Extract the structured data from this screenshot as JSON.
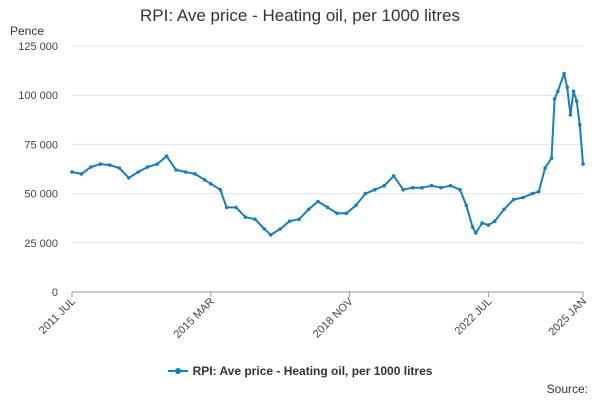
{
  "chart_data": {
    "type": "line",
    "title": "RPI: Ave price - Heating oil, per 1000 litres",
    "ylabel": "Pence",
    "ylim": [
      0,
      125000
    ],
    "y_ticks": [
      "0",
      "25 000",
      "50 000",
      "75 000",
      "100 000",
      "125 000"
    ],
    "y_tick_values": [
      0,
      25000,
      50000,
      75000,
      100000,
      125000
    ],
    "x_range": [
      "2011-07",
      "2025-01"
    ],
    "x_ticks": [
      {
        "label": "2011 JUL",
        "date": "2011-07"
      },
      {
        "label": "2015 MAR",
        "date": "2015-03"
      },
      {
        "label": "2018 NOV",
        "date": "2018-11"
      },
      {
        "label": "2022 JUL",
        "date": "2022-07"
      },
      {
        "label": "2025 JAN",
        "date": "2025-01"
      }
    ],
    "grid": true,
    "legend_position": "bottom",
    "series": [
      {
        "name": "RPI: Ave price - Heating oil, per 1000 litres",
        "color": "#1a7fb8",
        "points": [
          [
            "2011-07",
            61000
          ],
          [
            "2011-10",
            60000
          ],
          [
            "2012-01",
            63500
          ],
          [
            "2012-04",
            65000
          ],
          [
            "2012-07",
            64500
          ],
          [
            "2012-10",
            63000
          ],
          [
            "2013-01",
            58000
          ],
          [
            "2013-04",
            61000
          ],
          [
            "2013-07",
            63500
          ],
          [
            "2013-10",
            65000
          ],
          [
            "2014-01",
            69000
          ],
          [
            "2014-04",
            62000
          ],
          [
            "2014-07",
            61000
          ],
          [
            "2014-10",
            60000
          ],
          [
            "2015-01",
            57000
          ],
          [
            "2015-03",
            55000
          ],
          [
            "2015-06",
            52000
          ],
          [
            "2015-08",
            43000
          ],
          [
            "2015-11",
            43000
          ],
          [
            "2016-02",
            38000
          ],
          [
            "2016-05",
            37000
          ],
          [
            "2016-08",
            32000
          ],
          [
            "2016-10",
            29000
          ],
          [
            "2017-01",
            32000
          ],
          [
            "2017-04",
            36000
          ],
          [
            "2017-07",
            37000
          ],
          [
            "2017-10",
            42000
          ],
          [
            "2018-01",
            46000
          ],
          [
            "2018-04",
            43000
          ],
          [
            "2018-07",
            40000
          ],
          [
            "2018-10",
            40000
          ],
          [
            "2019-01",
            44000
          ],
          [
            "2019-04",
            50000
          ],
          [
            "2019-07",
            52000
          ],
          [
            "2019-10",
            54000
          ],
          [
            "2020-01",
            59000
          ],
          [
            "2020-04",
            52000
          ],
          [
            "2020-07",
            53000
          ],
          [
            "2020-10",
            53000
          ],
          [
            "2021-01",
            54000
          ],
          [
            "2021-04",
            53000
          ],
          [
            "2021-07",
            54000
          ],
          [
            "2021-10",
            52000
          ],
          [
            "2021-12",
            44000
          ],
          [
            "2022-02",
            33000
          ],
          [
            "2022-03",
            30000
          ],
          [
            "2022-05",
            35000
          ],
          [
            "2022-07",
            34000
          ],
          [
            "2022-09",
            36000
          ],
          [
            "2022-12",
            42000
          ],
          [
            "2023-03",
            47000
          ],
          [
            "2023-06",
            48000
          ],
          [
            "2023-09",
            50000
          ],
          [
            "2023-11",
            51000
          ],
          [
            "2024-01",
            63000
          ],
          [
            "2024-03",
            68000
          ],
          [
            "2024-04",
            98000
          ],
          [
            "2024-05",
            102000
          ],
          [
            "2024-07",
            111000
          ],
          [
            "2024-08",
            104000
          ],
          [
            "2024-09",
            90000
          ],
          [
            "2024-10",
            102000
          ],
          [
            "2024-11",
            97000
          ],
          [
            "2024-12",
            85000
          ],
          [
            "2025-01",
            65000
          ]
        ]
      }
    ]
  },
  "source_label": "Source:"
}
